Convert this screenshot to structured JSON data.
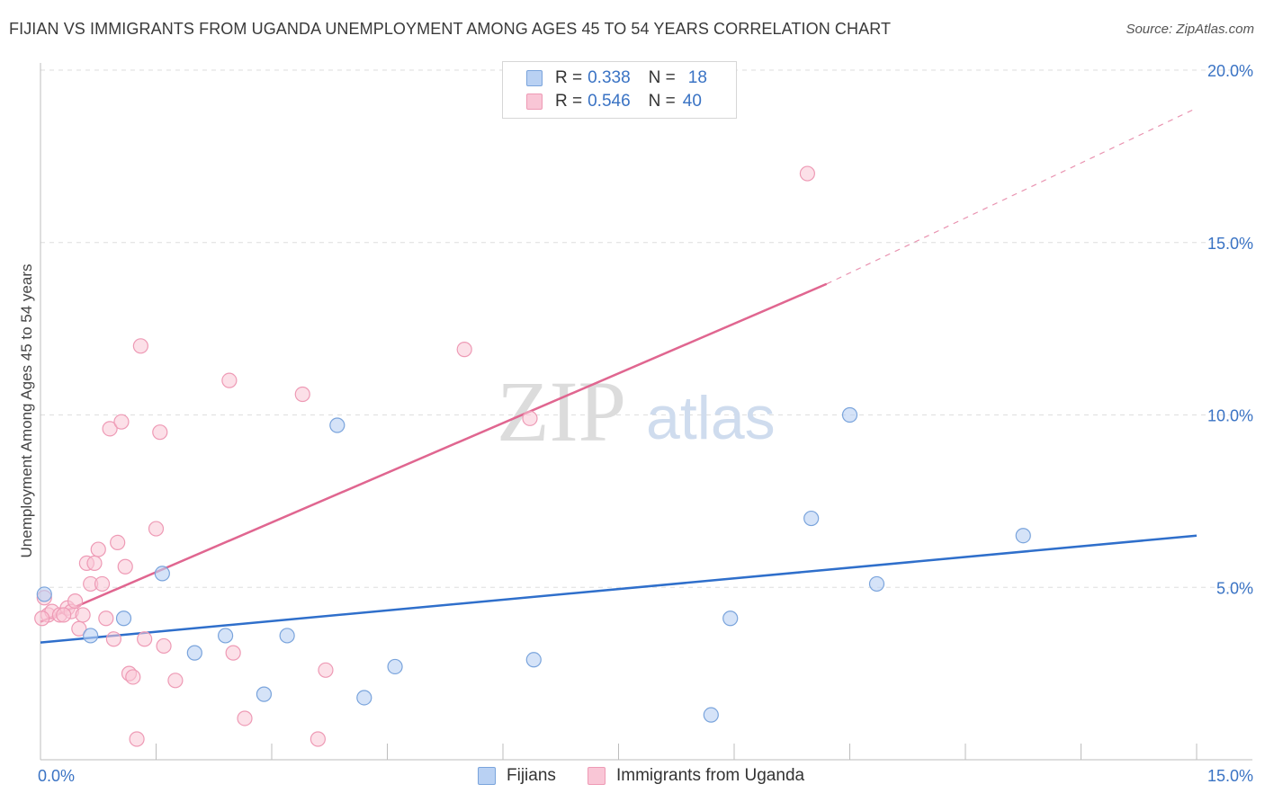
{
  "title": "FIJIAN VS IMMIGRANTS FROM UGANDA UNEMPLOYMENT AMONG AGES 45 TO 54 YEARS CORRELATION CHART",
  "source": "Source: ZipAtlas.com",
  "colors": {
    "fijians_fill": "#b9d1f3",
    "fijians_stroke": "#7aa4dc",
    "fijians_line": "#2f6fcb",
    "uganda_fill": "#f9c6d6",
    "uganda_stroke": "#ee9ab5",
    "uganda_line": "#e06690",
    "tick_text": "#3a73c4",
    "grid": "#dedede"
  },
  "legend": {
    "r_label": "R =",
    "n_label": "N =",
    "fijians": {
      "r": "0.338",
      "n": "18"
    },
    "uganda": {
      "r": "0.546",
      "n": "40"
    }
  },
  "watermark": {
    "zip": "ZIP",
    "atlas": "atlas"
  },
  "chart_data": {
    "type": "scatter",
    "title": "FIJIAN VS IMMIGRANTS FROM UGANDA UNEMPLOYMENT AMONG AGES 45 TO 54 YEARS CORRELATION CHART",
    "xlabel": "",
    "ylabel": "Unemployment Among Ages 45 to 54 years",
    "xlim": [
      0,
      15
    ],
    "ylim": [
      0,
      20
    ],
    "x_tick_labels": [
      "0.0%",
      "15.0%"
    ],
    "y_ticks": [
      5,
      10,
      15,
      20
    ],
    "y_tick_labels": [
      "5.0%",
      "10.0%",
      "15.0%",
      "20.0%"
    ],
    "grid": true,
    "series": [
      {
        "name": "Fijians",
        "points": [
          [
            0.05,
            4.8
          ],
          [
            0.65,
            3.6
          ],
          [
            1.08,
            4.1
          ],
          [
            1.58,
            5.4
          ],
          [
            2.0,
            3.1
          ],
          [
            2.4,
            3.6
          ],
          [
            2.9,
            1.9
          ],
          [
            3.2,
            3.6
          ],
          [
            3.85,
            9.7
          ],
          [
            4.2,
            1.8
          ],
          [
            4.6,
            2.7
          ],
          [
            6.4,
            2.9
          ],
          [
            8.7,
            1.3
          ],
          [
            8.95,
            4.1
          ],
          [
            10.0,
            7.0
          ],
          [
            10.5,
            10.0
          ],
          [
            10.85,
            5.1
          ],
          [
            12.75,
            6.5
          ]
        ],
        "trend": {
          "x": [
            0,
            15
          ],
          "y": [
            3.4,
            6.5
          ]
        }
      },
      {
        "name": "Immigrants from Uganda",
        "points": [
          [
            0.05,
            4.7
          ],
          [
            0.1,
            4.2
          ],
          [
            0.15,
            4.3
          ],
          [
            0.25,
            4.2
          ],
          [
            0.35,
            4.4
          ],
          [
            0.4,
            4.3
          ],
          [
            0.45,
            4.6
          ],
          [
            0.5,
            3.8
          ],
          [
            0.55,
            4.2
          ],
          [
            0.6,
            5.7
          ],
          [
            0.65,
            5.1
          ],
          [
            0.7,
            5.7
          ],
          [
            0.75,
            6.1
          ],
          [
            0.8,
            5.1
          ],
          [
            0.85,
            4.1
          ],
          [
            0.9,
            9.6
          ],
          [
            0.95,
            3.5
          ],
          [
            1.0,
            6.3
          ],
          [
            1.05,
            9.8
          ],
          [
            1.1,
            5.6
          ],
          [
            1.15,
            2.5
          ],
          [
            1.2,
            2.4
          ],
          [
            1.25,
            0.6
          ],
          [
            1.3,
            12.0
          ],
          [
            1.35,
            3.5
          ],
          [
            1.5,
            6.7
          ],
          [
            1.55,
            9.5
          ],
          [
            1.6,
            3.3
          ],
          [
            1.75,
            2.3
          ],
          [
            2.45,
            11.0
          ],
          [
            2.5,
            3.1
          ],
          [
            2.65,
            1.2
          ],
          [
            3.4,
            10.6
          ],
          [
            3.6,
            0.6
          ],
          [
            3.7,
            2.6
          ],
          [
            5.5,
            11.9
          ],
          [
            6.35,
            9.9
          ],
          [
            9.95,
            17.0
          ],
          [
            0.02,
            4.1
          ],
          [
            0.3,
            4.2
          ]
        ],
        "trend": {
          "x": [
            0,
            10.2
          ],
          "y": [
            4.0,
            13.8
          ]
        },
        "trend_extrapolated": {
          "x": [
            10.2,
            15
          ],
          "y": [
            13.8,
            18.9
          ]
        }
      }
    ]
  },
  "bottom_legend": {
    "fijians": "Fijians",
    "uganda": "Immigrants from Uganda"
  }
}
